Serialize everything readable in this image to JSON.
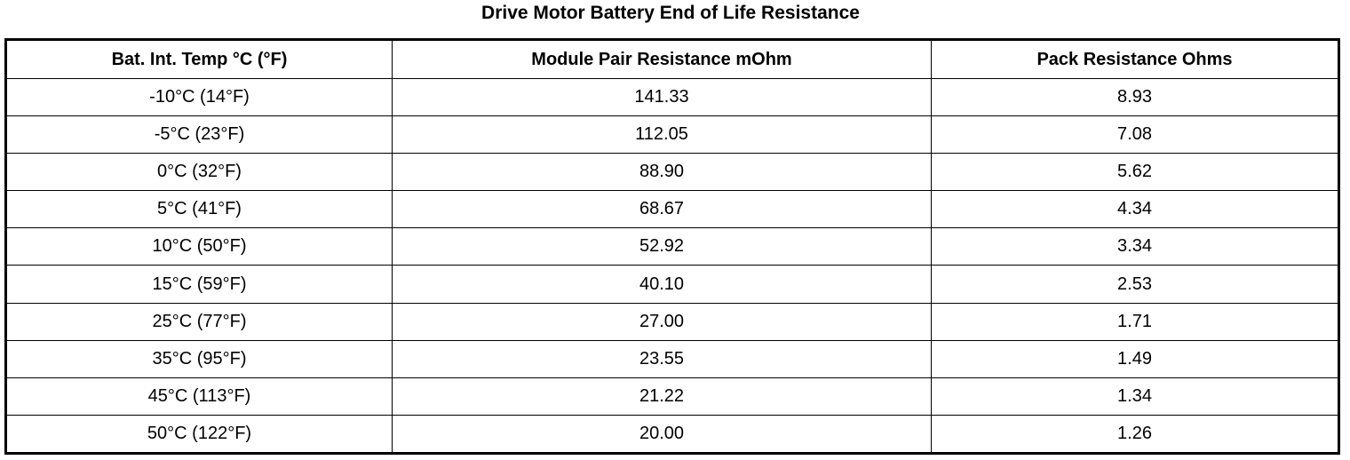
{
  "title": "Drive Motor Battery End of Life Resistance",
  "table": {
    "header": [
      "Bat. Int. Temp °C (°F)",
      "Module Pair Resistance mOhm",
      "Pack Resistance Ohms"
    ],
    "rows": [
      [
        "-10°C (14°F)",
        "141.33",
        "8.93"
      ],
      [
        "-5°C (23°F)",
        "112.05",
        "7.08"
      ],
      [
        "0°C (32°F)",
        "88.90",
        "5.62"
      ],
      [
        "5°C (41°F)",
        "68.67",
        "4.34"
      ],
      [
        "10°C (50°F)",
        "52.92",
        "3.34"
      ],
      [
        "15°C (59°F)",
        "40.10",
        "2.53"
      ],
      [
        "25°C (77°F)",
        "27.00",
        "1.71"
      ],
      [
        "35°C (95°F)",
        "23.55",
        "1.49"
      ],
      [
        "45°C (113°F)",
        "21.22",
        "1.34"
      ],
      [
        "50°C (122°F)",
        "20.00",
        "1.26"
      ]
    ]
  }
}
